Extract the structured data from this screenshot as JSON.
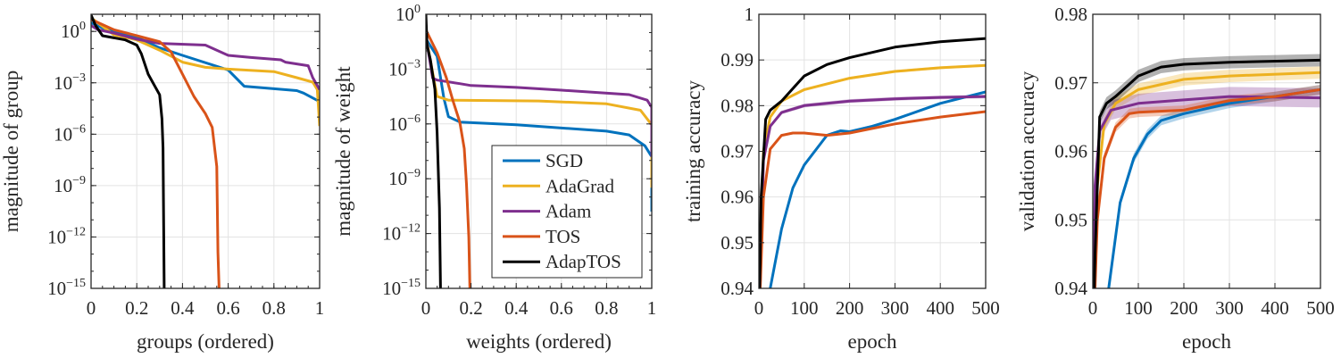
{
  "colors": {
    "SGD": "#0072BD",
    "AdaGrad": "#EDB120",
    "Adam": "#7E2F8E",
    "TOS": "#D95319",
    "AdapTOS": "#000000"
  },
  "legend": {
    "placement": "panel-2 lower-right",
    "entries": [
      "SGD",
      "AdaGrad",
      "Adam",
      "TOS",
      "AdapTOS"
    ]
  },
  "chart_data": [
    {
      "type": "line",
      "xlabel": "groups (ordered)",
      "ylabel": "magnitude of group",
      "xlim": [
        0,
        1
      ],
      "ylim": [
        1e-15,
        10
      ],
      "yscale": "log",
      "grid": true,
      "xticks": [
        0,
        0.2,
        0.4,
        0.6,
        0.8,
        1
      ],
      "xtick_labels": [
        "0",
        "0.2",
        "0.4",
        "0.6",
        "0.8",
        "1"
      ],
      "yticks_exp": [
        0,
        -3,
        -6,
        -9,
        -12,
        -15
      ],
      "ytick_labels": [
        "10^0",
        "10^-3",
        "10^-6",
        "10^-9",
        "10^-12",
        "10^-15"
      ],
      "series": [
        {
          "name": "SGD",
          "x": [
            0,
            0.05,
            0.2,
            0.3,
            0.4,
            0.6,
            0.67,
            0.9,
            0.93,
            1
          ],
          "y": [
            3.2,
            1.6,
            0.45,
            0.11,
            0.04,
            0.0056,
            0.00063,
            0.00035,
            0.00025,
            8e-05
          ]
        },
        {
          "name": "AdaGrad",
          "x": [
            0,
            0.1,
            0.2,
            0.3,
            0.4,
            0.5,
            0.6,
            0.8,
            0.9,
            0.97,
            0.99,
            1
          ],
          "y": [
            6.3,
            0.63,
            0.32,
            0.08,
            0.016,
            0.008,
            0.0063,
            0.0045,
            0.002,
            0.0011,
            0.0004,
            3e-06
          ]
        },
        {
          "name": "Adam",
          "x": [
            0,
            0.03,
            0.1,
            0.2,
            0.3,
            0.5,
            0.6,
            0.7,
            0.83,
            0.85,
            0.95,
            0.97,
            1
          ],
          "y": [
            2.2,
            1.26,
            0.8,
            0.35,
            0.2,
            0.16,
            0.04,
            0.03,
            0.022,
            0.016,
            0.01,
            0.002,
            0.0004
          ]
        },
        {
          "name": "TOS",
          "x": [
            0,
            0.1,
            0.2,
            0.3,
            0.35,
            0.4,
            0.45,
            0.5,
            0.53,
            0.55,
            0.555,
            0.56
          ],
          "y": [
            5,
            1.26,
            0.56,
            0.25,
            0.063,
            0.0032,
            0.00016,
            1.6e-05,
            2.5e-06,
            1.3e-08,
            1.3e-13,
            1e-15
          ]
        },
        {
          "name": "AdapTOS",
          "x": [
            0,
            0.02,
            0.05,
            0.15,
            0.2,
            0.22,
            0.25,
            0.3,
            0.31,
            0.315,
            0.32
          ],
          "y": [
            9,
            2.2,
            0.56,
            0.32,
            0.16,
            0.05,
            0.0032,
            0.0002,
            8e-06,
            1.6e-07,
            1e-15
          ]
        }
      ]
    },
    {
      "type": "line",
      "xlabel": "weights (ordered)",
      "ylabel": "magnitude of weight",
      "xlim": [
        0,
        1
      ],
      "ylim": [
        1e-15,
        1
      ],
      "yscale": "log",
      "grid": true,
      "xticks": [
        0,
        0.2,
        0.4,
        0.6,
        0.8,
        1
      ],
      "xtick_labels": [
        "0",
        "0.2",
        "0.4",
        "0.6",
        "0.8",
        "1"
      ],
      "yticks_exp": [
        0,
        -3,
        -6,
        -9,
        -12,
        -15
      ],
      "ytick_labels": [
        "10^0",
        "10^-3",
        "10^-6",
        "10^-9",
        "10^-12",
        "10^-15"
      ],
      "series": [
        {
          "name": "SGD",
          "x": [
            0,
            0.05,
            0.08,
            0.1,
            0.15,
            0.4,
            0.8,
            0.9,
            0.97,
            1,
            1
          ],
          "y": [
            0.045,
            0.005,
            2.5e-05,
            2.5e-06,
            1.26e-06,
            8.9e-07,
            4e-07,
            2.5e-07,
            6.3e-08,
            1.6e-08,
            1.6e-11
          ]
        },
        {
          "name": "AdaGrad",
          "x": [
            0,
            0.05,
            0.1,
            0.5,
            0.8,
            0.95,
            1,
            1
          ],
          "y": [
            0.063,
            3.2e-05,
            2e-05,
            1.8e-05,
            1.26e-05,
            5.6e-06,
            8.9e-07,
            3.2e-10
          ]
        },
        {
          "name": "Adam",
          "x": [
            0,
            0.03,
            0.05,
            0.15,
            0.2,
            0.4,
            0.6,
            0.9,
            0.98,
            1,
            1
          ],
          "y": [
            0.063,
            0.00032,
            0.00025,
            0.00016,
            0.000126,
            0.0001,
            7e-05,
            4e-05,
            2e-05,
            8e-06,
            1.6e-08
          ]
        },
        {
          "name": "TOS",
          "x": [
            0,
            0.05,
            0.09,
            0.12,
            0.15,
            0.17,
            0.18,
            0.19,
            0.195
          ],
          "y": [
            0.14,
            0.0079,
            0.00035,
            1.8e-05,
            1.26e-06,
            4.5e-08,
            5e-10,
            6.3e-13,
            1e-15
          ]
        },
        {
          "name": "AdapTOS",
          "x": [
            0,
            0.005,
            0.02,
            0.04,
            0.05,
            0.06,
            0.065
          ],
          "y": [
            1,
            0.02,
            0.0032,
            7.9e-05,
            3.2e-07,
            2.5e-11,
            1e-15
          ]
        }
      ]
    },
    {
      "type": "line",
      "xlabel": "epoch",
      "ylabel": "training accuracy",
      "xlim": [
        0,
        500
      ],
      "ylim": [
        0.94,
        1
      ],
      "yscale": "linear",
      "grid": true,
      "xticks": [
        0,
        100,
        200,
        300,
        400,
        500
      ],
      "xtick_labels": [
        "0",
        "100",
        "200",
        "300",
        "400",
        "500"
      ],
      "yticks": [
        0.94,
        0.95,
        0.96,
        0.97,
        0.98,
        0.99,
        1
      ],
      "ytick_labels": [
        "0.94",
        "0.95",
        "0.96",
        "0.97",
        "0.98",
        "0.99",
        "1"
      ],
      "series": [
        {
          "name": "SGD",
          "band": 0.0003,
          "x": [
            25,
            50,
            75,
            100,
            150,
            180,
            200,
            250,
            300,
            400,
            500
          ],
          "y": [
            0.94,
            0.953,
            0.962,
            0.967,
            0.9735,
            0.9745,
            0.9743,
            0.9755,
            0.977,
            0.9805,
            0.983
          ]
        },
        {
          "name": "AdaGrad",
          "band": 0.0003,
          "x": [
            0,
            10,
            25,
            50,
            100,
            200,
            300,
            400,
            500
          ],
          "y": [
            0.93,
            0.97,
            0.9775,
            0.981,
            0.9835,
            0.986,
            0.9875,
            0.9883,
            0.9888
          ]
        },
        {
          "name": "Adam",
          "band": 0.0004,
          "x": [
            0,
            10,
            25,
            50,
            100,
            200,
            300,
            400,
            500
          ],
          "y": [
            0.93,
            0.968,
            0.9755,
            0.9785,
            0.98,
            0.981,
            0.9815,
            0.9818,
            0.982
          ]
        },
        {
          "name": "TOS",
          "band": 0.0002,
          "x": [
            3,
            10,
            25,
            50,
            75,
            100,
            150,
            200,
            250,
            300,
            400,
            500
          ],
          "y": [
            0.94,
            0.96,
            0.9705,
            0.9735,
            0.974,
            0.974,
            0.9735,
            0.974,
            0.975,
            0.976,
            0.9775,
            0.9787
          ]
        },
        {
          "name": "AdapTOS",
          "band": 0.0002,
          "x": [
            0,
            5,
            15,
            25,
            50,
            100,
            150,
            200,
            300,
            400,
            500
          ],
          "y": [
            0.93,
            0.96,
            0.977,
            0.979,
            0.981,
            0.9865,
            0.989,
            0.9905,
            0.9928,
            0.994,
            0.9947
          ]
        }
      ]
    },
    {
      "type": "line",
      "xlabel": "epoch",
      "ylabel": "validation accuracy",
      "xlim": [
        0,
        500
      ],
      "ylim": [
        0.94,
        0.98
      ],
      "yscale": "linear",
      "grid": true,
      "xticks": [
        0,
        100,
        200,
        300,
        400,
        500
      ],
      "xtick_labels": [
        "0",
        "100",
        "200",
        "300",
        "400",
        "500"
      ],
      "yticks": [
        0.94,
        0.95,
        0.96,
        0.97,
        0.98
      ],
      "ytick_labels": [
        "0.94",
        "0.95",
        "0.96",
        "0.97",
        "0.98"
      ],
      "series": [
        {
          "name": "SGD",
          "band": 0.0007,
          "x": [
            35,
            60,
            90,
            120,
            150,
            200,
            300,
            400,
            500
          ],
          "y": [
            0.94,
            0.9525,
            0.959,
            0.9625,
            0.9645,
            0.9655,
            0.967,
            0.968,
            0.969
          ]
        },
        {
          "name": "AdaGrad",
          "band": 0.0009,
          "x": [
            0,
            10,
            25,
            50,
            100,
            200,
            300,
            500
          ],
          "y": [
            0.93,
            0.955,
            0.964,
            0.967,
            0.969,
            0.9705,
            0.971,
            0.9715
          ]
        },
        {
          "name": "Adam",
          "band": 0.0014,
          "x": [
            0,
            5,
            15,
            40,
            100,
            200,
            300,
            500
          ],
          "y": [
            0.93,
            0.955,
            0.963,
            0.966,
            0.967,
            0.9675,
            0.968,
            0.9678
          ]
        },
        {
          "name": "TOS",
          "band": 0.0007,
          "x": [
            5,
            10,
            25,
            50,
            80,
            100,
            200,
            300,
            400,
            500
          ],
          "y": [
            0.94,
            0.95,
            0.959,
            0.9635,
            0.9655,
            0.9657,
            0.966,
            0.9674,
            0.968,
            0.969
          ]
        },
        {
          "name": "AdapTOS",
          "band": 0.0009,
          "x": [
            0,
            5,
            15,
            30,
            50,
            100,
            150,
            200,
            300,
            500
          ],
          "y": [
            0.93,
            0.945,
            0.965,
            0.967,
            0.968,
            0.971,
            0.9723,
            0.9727,
            0.973,
            0.9733
          ]
        }
      ]
    }
  ]
}
